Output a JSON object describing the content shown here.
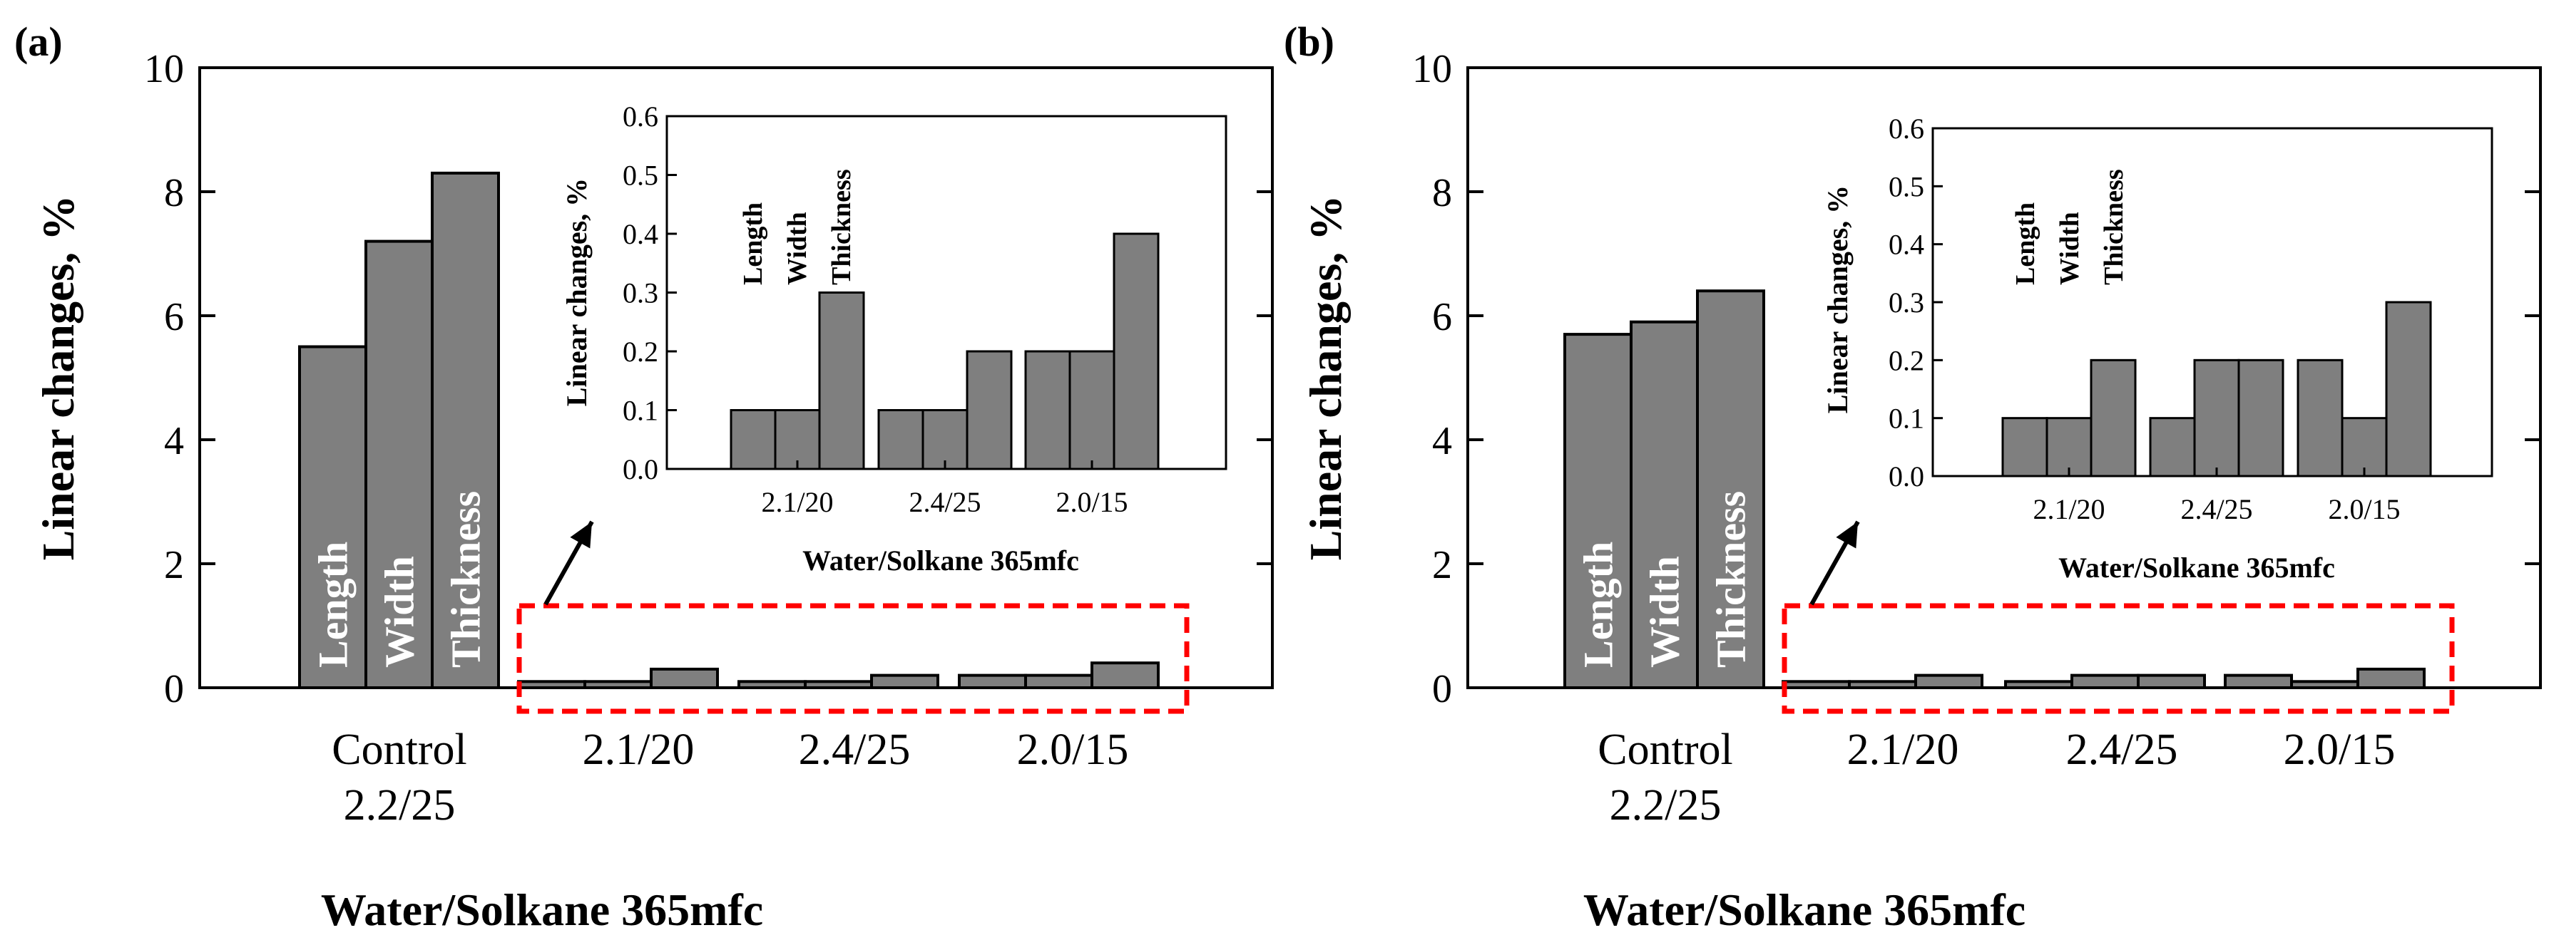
{
  "chart_data": [
    {
      "type": "bar",
      "panel": "(a)",
      "xlabel": "Water/Solkane 365mfc",
      "ylabel": "Linear changes,  %",
      "ylim": [
        0,
        10
      ],
      "yticks": [
        "0",
        "2",
        "4",
        "6",
        "8",
        "10"
      ],
      "bar_fill": "#7f7f7f",
      "highlight_color": "#ff0000",
      "groups": [
        {
          "label_lines": [
            "Control",
            "2.2/25"
          ],
          "values": [
            5.5,
            7.2,
            8.3
          ],
          "bar_labels": [
            "Length",
            "Width",
            "Thickness"
          ]
        },
        {
          "label_lines": [
            "2.1/20"
          ],
          "values": [
            0.1,
            0.1,
            0.3
          ]
        },
        {
          "label_lines": [
            "2.4/25"
          ],
          "values": [
            0.1,
            0.1,
            0.2
          ]
        },
        {
          "label_lines": [
            "2.0/15"
          ],
          "values": [
            0.2,
            0.2,
            0.4
          ]
        }
      ],
      "inset": {
        "xlabel": "Water/Solkane 365mfc",
        "ylabel": "Linear changes,  %",
        "ylim": [
          0,
          0.6
        ],
        "yticks": [
          "0.0",
          "0.1",
          "0.2",
          "0.3",
          "0.4",
          "0.5",
          "0.6"
        ],
        "series_names": [
          "Length",
          "Width",
          "Thickness"
        ],
        "categories": [
          "2.1/20",
          "2.4/25",
          "2.0/15"
        ],
        "values": [
          [
            0.1,
            0.1,
            0.3
          ],
          [
            0.1,
            0.1,
            0.2
          ],
          [
            0.2,
            0.2,
            0.4
          ]
        ]
      }
    },
    {
      "type": "bar",
      "panel": "(b)",
      "xlabel": "Water/Solkane 365mfc",
      "ylabel": "Linear changes,  %",
      "ylim": [
        0,
        10
      ],
      "yticks": [
        "0",
        "2",
        "4",
        "6",
        "8",
        "10"
      ],
      "bar_fill": "#7f7f7f",
      "highlight_color": "#ff0000",
      "groups": [
        {
          "label_lines": [
            "Control",
            "2.2/25"
          ],
          "values": [
            5.7,
            5.9,
            6.4
          ],
          "bar_labels": [
            "Length",
            "Width",
            "Thickness"
          ]
        },
        {
          "label_lines": [
            "2.1/20"
          ],
          "values": [
            0.1,
            0.1,
            0.2
          ]
        },
        {
          "label_lines": [
            "2.4/25"
          ],
          "values": [
            0.1,
            0.2,
            0.2
          ]
        },
        {
          "label_lines": [
            "2.0/15"
          ],
          "values": [
            0.2,
            0.1,
            0.3
          ]
        }
      ],
      "inset": {
        "xlabel": "Water/Solkane 365mfc",
        "ylabel": "Linear changes,  %",
        "ylim": [
          0,
          0.6
        ],
        "yticks": [
          "0.0",
          "0.1",
          "0.2",
          "0.3",
          "0.4",
          "0.5",
          "0.6"
        ],
        "series_names": [
          "Length",
          "Width",
          "Thickness"
        ],
        "categories": [
          "2.1/20",
          "2.4/25",
          "2.0/15"
        ],
        "values": [
          [
            0.1,
            0.1,
            0.2
          ],
          [
            0.1,
            0.2,
            0.2
          ],
          [
            0.2,
            0.1,
            0.3
          ]
        ]
      }
    }
  ]
}
